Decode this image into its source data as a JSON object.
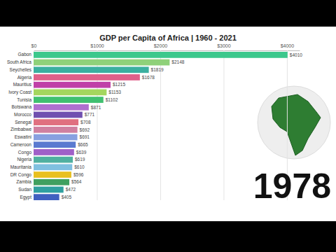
{
  "chart_data": {
    "type": "bar",
    "orientation": "horizontal",
    "title": "GDP per Capita of Africa | 1960 - 2021",
    "annotation": "1978",
    "categories": [
      "Gabon",
      "South Africa",
      "Seychelles",
      "Algeria",
      "Mauritius",
      "Ivory Coast",
      "Tunisia",
      "Botswana",
      "Morocco",
      "Senegal",
      "Zimbabwe",
      "Eswatini",
      "Cameroon",
      "Congo",
      "Nigeria",
      "Mauritania",
      "DR Congo",
      "Zambia",
      "Sudan",
      "Egypt"
    ],
    "values": [
      4010,
      2148,
      1819,
      1678,
      1215,
      1153,
      1102,
      871,
      771,
      708,
      692,
      691,
      665,
      639,
      619,
      610,
      596,
      564,
      472,
      405
    ],
    "value_labels": [
      "$4010",
      "$2148",
      "$1819",
      "$1678",
      "$1215",
      "$1153",
      "$1102",
      "$871",
      "$771",
      "$708",
      "$692",
      "$691",
      "$665",
      "$639",
      "$619",
      "$610",
      "$596",
      "$564",
      "$472",
      "$405"
    ],
    "colors": [
      "#3cc88c",
      "#8fd17a",
      "#3bb0a0",
      "#e0608a",
      "#c040a8",
      "#a4d65e",
      "#40c070",
      "#b070d0",
      "#7050b0",
      "#e07080",
      "#d080a0",
      "#88a0e0",
      "#5a7ad0",
      "#a060c8",
      "#50b0a0",
      "#80c0e0",
      "#e8c020",
      "#40a060",
      "#30a0a0",
      "#4060c0"
    ],
    "data_labels": true,
    "grid": true,
    "xlim": [
      0,
      4200
    ],
    "xticks": [
      {
        "value": 0,
        "label": "$0"
      },
      {
        "value": 1000,
        "label": "$1000"
      },
      {
        "value": 2000,
        "label": "$2000"
      },
      {
        "value": 3000,
        "label": "$3000"
      },
      {
        "value": 4000,
        "label": "$4000"
      }
    ]
  }
}
